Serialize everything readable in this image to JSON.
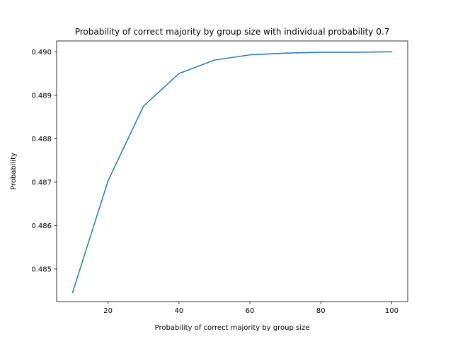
{
  "chart_data": {
    "type": "line",
    "title": "Probability of correct majority by group size with individual probability 0.7",
    "xlabel": "Probability of correct majority by group size",
    "ylabel": "Probability",
    "xlim": [
      5.5,
      104.5
    ],
    "ylim": [
      0.48425,
      0.49025
    ],
    "x_ticks": [
      20,
      40,
      60,
      80,
      100
    ],
    "x_tick_labels": [
      "20",
      "40",
      "60",
      "80",
      "100"
    ],
    "y_ticks": [
      0.485,
      0.486,
      0.487,
      0.488,
      0.489,
      0.49
    ],
    "y_tick_labels": [
      "0.485",
      "0.486",
      "0.487",
      "0.488",
      "0.489",
      "0.490"
    ],
    "grid": false,
    "series": [
      {
        "color": "#1f77b4",
        "x": [
          10,
          20,
          30,
          40,
          50,
          60,
          70,
          80,
          90,
          100
        ],
        "y": [
          0.48446,
          0.48703,
          0.48875,
          0.4895,
          0.48981,
          0.48993,
          0.48997,
          0.48999,
          0.48999,
          0.49
        ]
      }
    ]
  }
}
